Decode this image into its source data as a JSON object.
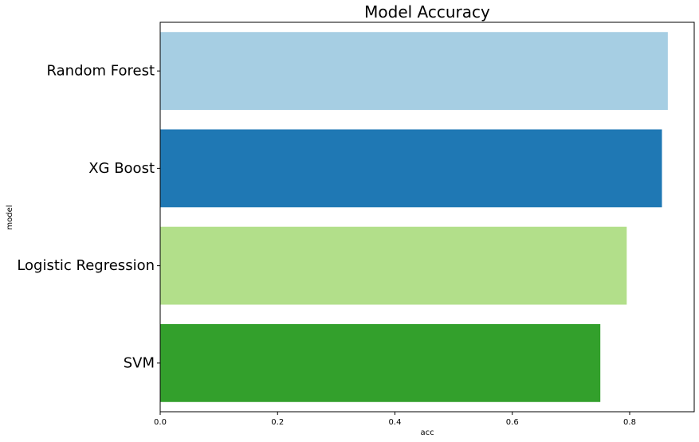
{
  "chart_data": {
    "type": "bar",
    "orientation": "horizontal",
    "title": "Model Accuracy",
    "xlabel": "acc",
    "ylabel": "model",
    "categories": [
      "Random Forest",
      "XG Boost",
      "Logistic Regression",
      "SVM"
    ],
    "values": [
      0.865,
      0.855,
      0.795,
      0.75
    ],
    "colors": [
      "#a6cee3",
      "#1f78b4",
      "#b2df8a",
      "#33a02c"
    ],
    "xlim": [
      0,
      0.91
    ],
    "xticks": [
      0.0,
      0.2,
      0.4,
      0.6,
      0.8
    ],
    "xtick_labels": [
      "0.0",
      "0.2",
      "0.4",
      "0.6",
      "0.8"
    ],
    "grid": false,
    "legend": "none"
  }
}
